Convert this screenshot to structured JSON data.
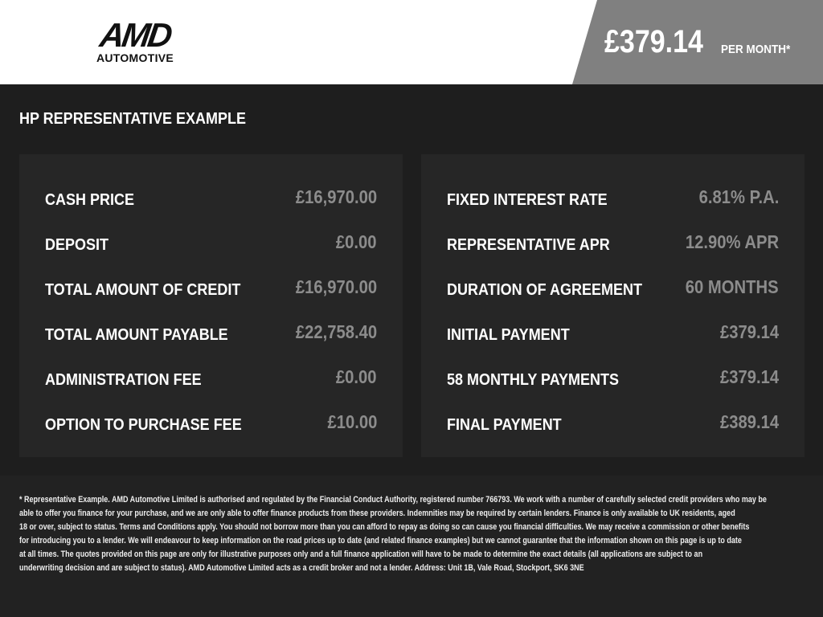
{
  "brand": {
    "logo_main": "AMD",
    "logo_sub": "AUTOMOTIVE"
  },
  "header": {
    "monthly_price": "£379.14",
    "per_month_label": "PER MONTH*"
  },
  "section_title": "HP REPRESENTATIVE EXAMPLE",
  "left_items": [
    {
      "label": "CASH PRICE",
      "value": "£16,970.00"
    },
    {
      "label": "DEPOSIT",
      "value": "£0.00"
    },
    {
      "label": "TOTAL AMOUNT OF CREDIT",
      "value": "£16,970.00"
    },
    {
      "label": "TOTAL AMOUNT PAYABLE",
      "value": "£22,758.40"
    },
    {
      "label": "ADMINISTRATION FEE",
      "value": "£0.00"
    },
    {
      "label": "OPTION TO PURCHASE FEE",
      "value": "£10.00"
    }
  ],
  "right_items": [
    {
      "label": "FIXED INTEREST RATE",
      "value": "6.81% P.A."
    },
    {
      "label": "REPRESENTATIVE APR",
      "value": "12.90% APR"
    },
    {
      "label": "DURATION OF AGREEMENT",
      "value": "60 MONTHS"
    },
    {
      "label": "INITIAL PAYMENT",
      "value": "£379.14"
    },
    {
      "label": "58 MONTHLY PAYMENTS",
      "value": "£379.14"
    },
    {
      "label": "FINAL PAYMENT",
      "value": "£389.14"
    }
  ],
  "disclaimer_lines": [
    "* Representative Example. AMD Automotive Limited is authorised and regulated by the Financial Conduct Authority, registered number 766793. We work with a number of carefully selected credit providers who may be",
    "able to offer you finance for your purchase, and we are only able to offer finance products from these providers. Indemnities may be required by certain lenders. Finance is only available to UK residents, aged",
    "18 or over, subject to status. Terms and Conditions apply. You should not borrow more than you can afford to repay as doing so can cause you financial difficulties. We may receive a commission or other benefits",
    "for introducing you to a lender. We will endeavour to keep information on the road prices up to date (and related finance examples) but we cannot guarantee that the information shown on this page is up to date",
    "at all times. The quotes provided on this page are only for illustrative purposes only and a full finance application will have to be made to determine the exact details (all applications are subject to an",
    "underwriting decision and are subject to status). AMD Automotive Limited acts as a credit broker and not a lender. Address: Unit 1B, Vale Road, Stockport, SK6 3NE"
  ],
  "colors": {
    "header_bg": "#ffffff",
    "price_box": "#808080",
    "body_bg": "#1e1e1e",
    "panel_bg": "#262626",
    "value_text": "#8c8c8c"
  }
}
